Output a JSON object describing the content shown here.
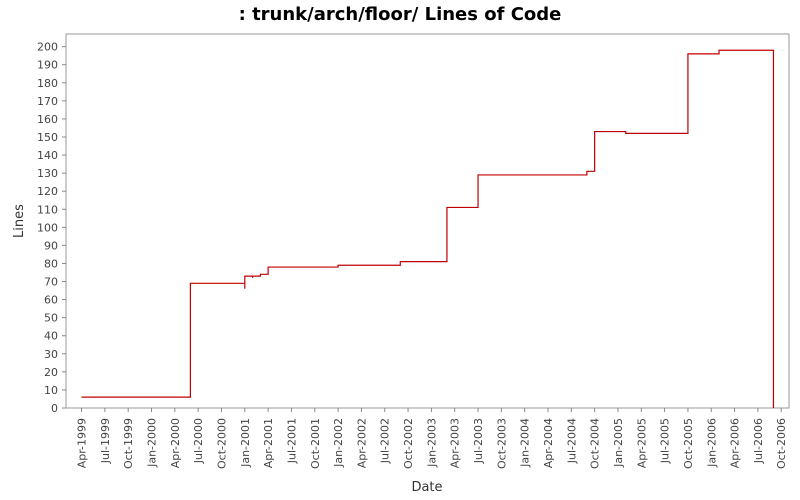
{
  "chart_data": {
    "type": "step-line",
    "title": ": trunk/arch/floor/ Lines of Code",
    "x_label": "Date",
    "y_label": "Lines",
    "x": [
      "1999-04",
      "2000-06",
      "2001-01",
      "2001-01",
      "2001-02",
      "2001-02",
      "2001-03",
      "2001-04",
      "2002-01",
      "2002-09",
      "2003-03",
      "2003-07",
      "2004-09",
      "2004-10",
      "2005-02",
      "2005-10",
      "2005-10",
      "2006-02",
      "2006-09",
      "2006-09"
    ],
    "series": [
      {
        "name": "Lines",
        "color": "#c00000",
        "values": [
          6,
          69,
          66,
          73,
          72,
          73,
          74,
          78,
          79,
          81,
          111,
          129,
          131,
          153,
          152,
          154,
          196,
          198,
          198,
          0
        ]
      }
    ],
    "xlim": [
      "1999-02",
      "2006-11"
    ],
    "xticks": [
      {
        "value": "1999-04",
        "label": "Apr-1999"
      },
      {
        "value": "1999-07",
        "label": "Jul-1999"
      },
      {
        "value": "1999-10",
        "label": "Oct-1999"
      },
      {
        "value": "2000-01",
        "label": "Jan-2000"
      },
      {
        "value": "2000-04",
        "label": "Apr-2000"
      },
      {
        "value": "2000-07",
        "label": "Jul-2000"
      },
      {
        "value": "2000-10",
        "label": "Oct-2000"
      },
      {
        "value": "2001-01",
        "label": "Jan-2001"
      },
      {
        "value": "2001-04",
        "label": "Apr-2001"
      },
      {
        "value": "2001-07",
        "label": "Jul-2001"
      },
      {
        "value": "2001-10",
        "label": "Oct-2001"
      },
      {
        "value": "2002-01",
        "label": "Jan-2002"
      },
      {
        "value": "2002-04",
        "label": "Apr-2002"
      },
      {
        "value": "2002-07",
        "label": "Jul-2002"
      },
      {
        "value": "2002-10",
        "label": "Oct-2002"
      },
      {
        "value": "2003-01",
        "label": "Jan-2003"
      },
      {
        "value": "2003-04",
        "label": "Apr-2003"
      },
      {
        "value": "2003-07",
        "label": "Jul-2003"
      },
      {
        "value": "2003-10",
        "label": "Oct-2003"
      },
      {
        "value": "2004-01",
        "label": "Jan-2004"
      },
      {
        "value": "2004-04",
        "label": "Apr-2004"
      },
      {
        "value": "2004-07",
        "label": "Jul-2004"
      },
      {
        "value": "2004-10",
        "label": "Oct-2004"
      },
      {
        "value": "2005-01",
        "label": "Jan-2005"
      },
      {
        "value": "2005-04",
        "label": "Apr-2005"
      },
      {
        "value": "2005-07",
        "label": "Jul-2005"
      },
      {
        "value": "2005-10",
        "label": "Oct-2005"
      },
      {
        "value": "2006-01",
        "label": "Jan-2006"
      },
      {
        "value": "2006-04",
        "label": "Apr-2006"
      },
      {
        "value": "2006-07",
        "label": "Jul-2006"
      },
      {
        "value": "2006-10",
        "label": "Oct-2006"
      }
    ],
    "ylim": [
      0,
      207
    ],
    "yticks": [
      0,
      10,
      20,
      30,
      40,
      50,
      60,
      70,
      80,
      90,
      100,
      110,
      120,
      130,
      140,
      150,
      160,
      170,
      180,
      190,
      200
    ],
    "grid": false
  }
}
